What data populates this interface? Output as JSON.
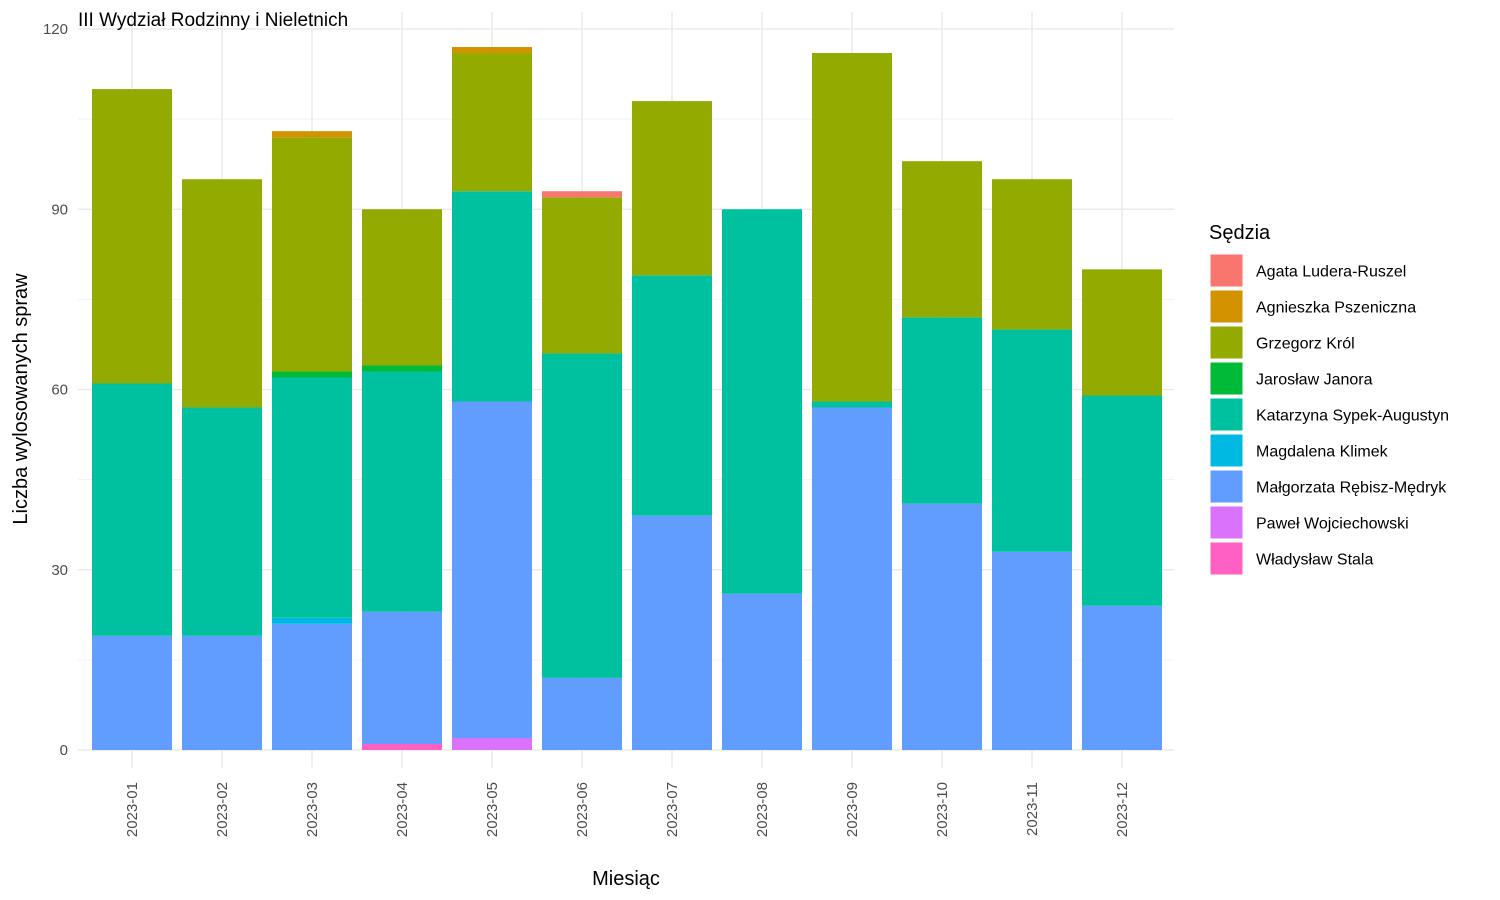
{
  "chart_data": {
    "type": "bar",
    "stacked": true,
    "title": "III Wydział Rodzinny i Nieletnich",
    "xlabel": "Miesiąc",
    "ylabel": "Liczba wylosowanych spraw",
    "ylim": [
      0,
      120
    ],
    "yticks": [
      0,
      30,
      60,
      90,
      120
    ],
    "grid": true,
    "legend_title": "Sędzia",
    "legend_position": "right",
    "categories": [
      "2023-01",
      "2023-02",
      "2023-03",
      "2023-04",
      "2023-05",
      "2023-06",
      "2023-07",
      "2023-08",
      "2023-09",
      "2023-10",
      "2023-11",
      "2023-12"
    ],
    "stack_order_bottom_to_top": [
      "Władysław Stala",
      "Paweł Wojciechowski",
      "Małgorzata Rębisz-Mędryk",
      "Magdalena Klimek",
      "Katarzyna Sypek-Augustyn",
      "Jarosław Janora",
      "Grzegorz Król",
      "Agnieszka Pszeniczna",
      "Agata Ludera-Ruszel"
    ],
    "series": [
      {
        "name": "Agata Ludera-Ruszel",
        "color": "#F8766D",
        "values": [
          0,
          0,
          0,
          0,
          0,
          1,
          0,
          0,
          0,
          0,
          0,
          0
        ]
      },
      {
        "name": "Agnieszka Pszeniczna",
        "color": "#D39200",
        "values": [
          0,
          0,
          1,
          0,
          1,
          0,
          0,
          0,
          0,
          0,
          0,
          0
        ]
      },
      {
        "name": "Grzegorz Król",
        "color": "#93AA00",
        "values": [
          49,
          38,
          39,
          26,
          23,
          26,
          29,
          0,
          58,
          26,
          25,
          21
        ]
      },
      {
        "name": "Jarosław Janora",
        "color": "#00BA38",
        "values": [
          0,
          0,
          1,
          1,
          0,
          0,
          0,
          0,
          0,
          0,
          0,
          0
        ]
      },
      {
        "name": "Katarzyna Sypek-Augustyn",
        "color": "#00C19F",
        "values": [
          42,
          38,
          40,
          40,
          35,
          54,
          40,
          64,
          1,
          31,
          37,
          35
        ]
      },
      {
        "name": "Magdalena Klimek",
        "color": "#00B9E3",
        "values": [
          0,
          0,
          1,
          0,
          0,
          0,
          0,
          0,
          0,
          0,
          0,
          0
        ]
      },
      {
        "name": "Małgorzata Rębisz-Mędryk",
        "color": "#619CFF",
        "values": [
          19,
          19,
          21,
          22,
          56,
          12,
          39,
          26,
          57,
          41,
          33,
          24
        ]
      },
      {
        "name": "Paweł Wojciechowski",
        "color": "#DB72FB",
        "values": [
          0,
          0,
          0,
          0,
          2,
          0,
          0,
          0,
          0,
          0,
          0,
          0
        ]
      },
      {
        "name": "Władysław Stala",
        "color": "#FF61C3",
        "values": [
          0,
          0,
          0,
          1,
          0,
          0,
          0,
          0,
          0,
          0,
          0,
          0
        ]
      }
    ]
  }
}
